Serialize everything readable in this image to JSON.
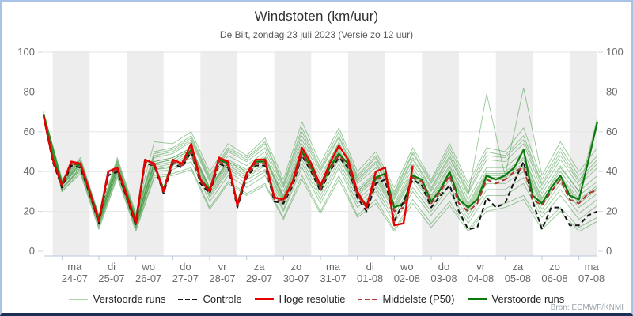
{
  "figure": {
    "title": "Windstoten (km/uur)",
    "subtitle": "De Bilt, zondag 23 juli 2023 (Versie zo 12 uur)",
    "source": "Bron: ECMWF/KNMI"
  },
  "legend": [
    {
      "label": "Verstoorde runs",
      "color": "#aed4a8",
      "dashed": false,
      "weight": 2
    },
    {
      "label": "Controle",
      "color": "#141414",
      "dashed": true,
      "weight": 2
    },
    {
      "label": "Hoge resolutie",
      "color": "#e60000",
      "dashed": false,
      "weight": 3
    },
    {
      "label": "Middelste (P50)",
      "color": "#b03535",
      "dashed": true,
      "weight": 2
    },
    {
      "label": "Verstoorde runs",
      "color": "#0b7a0b",
      "dashed": false,
      "weight": 3
    }
  ],
  "chart_data": {
    "type": "line",
    "title": "Windstoten (km/uur)",
    "x_unit": "hours since 2023-07-23 12:00",
    "x_range": [
      0,
      360
    ],
    "ylim": [
      0,
      100
    ],
    "y_ticks": [
      0,
      20,
      40,
      60,
      80,
      100
    ],
    "grid_values": [
      20,
      40,
      60,
      80,
      100
    ],
    "day_tick_hours": [
      12,
      36,
      60,
      84,
      108,
      132,
      156,
      180,
      204,
      228,
      252,
      276,
      300,
      324,
      348
    ],
    "x_day_labels": [
      {
        "weekday": "ma",
        "date": "24-07"
      },
      {
        "weekday": "di",
        "date": "25-07"
      },
      {
        "weekday": "wo",
        "date": "26-07"
      },
      {
        "weekday": "do",
        "date": "27-07"
      },
      {
        "weekday": "vr",
        "date": "28-07"
      },
      {
        "weekday": "za",
        "date": "29-07"
      },
      {
        "weekday": "zo",
        "date": "30-07"
      },
      {
        "weekday": "ma",
        "date": "31-07"
      },
      {
        "weekday": "di",
        "date": "01-08"
      },
      {
        "weekday": "wo",
        "date": "02-08"
      },
      {
        "weekday": "do",
        "date": "03-08"
      },
      {
        "weekday": "vr",
        "date": "04-08"
      },
      {
        "weekday": "za",
        "date": "05-08"
      },
      {
        "weekday": "zo",
        "date": "06-08"
      },
      {
        "weekday": "ma",
        "date": "07-08"
      }
    ],
    "shaded_band_start_hours": [
      6,
      54,
      102,
      150,
      198,
      246,
      294,
      342
    ],
    "band_width_hours": 24,
    "band_color": "#ededed",
    "grid_color": "#e6e6e6",
    "axis_color": "#b9c7da",
    "label_color": "#6a6a6a",
    "series": {
      "hoge_resolutie": {
        "label": "Hoge resolutie",
        "color": "#e60000",
        "width": 2.4,
        "x_step": 6,
        "values": [
          68,
          46,
          33,
          45,
          44,
          30,
          15,
          40,
          42,
          28,
          14,
          46,
          44,
          30,
          46,
          44,
          54,
          36,
          30,
          47,
          45,
          23,
          39,
          46,
          46,
          27,
          26,
          35,
          52,
          44,
          33,
          44,
          53,
          46,
          30,
          22,
          40,
          42,
          13,
          14,
          43
        ]
      },
      "controle": {
        "label": "Controle",
        "color": "#141414",
        "width": 2,
        "dash": "6,4",
        "x_step": 6,
        "values": [
          68,
          45,
          32,
          43,
          42,
          29,
          14,
          38,
          40,
          27,
          13,
          44,
          43,
          29,
          44,
          42,
          50,
          34,
          29,
          44,
          42,
          22,
          37,
          43,
          43,
          25,
          24,
          33,
          48,
          40,
          30,
          40,
          47,
          42,
          27,
          20,
          34,
          36,
          15,
          25,
          36,
          33,
          22,
          28,
          33,
          20,
          11,
          12,
          27,
          22,
          24,
          35,
          45,
          25,
          11,
          22,
          22,
          13,
          13,
          18,
          20
        ]
      },
      "middelste_p50": {
        "label": "Middelste (P50)",
        "color": "#b03535",
        "width": 2,
        "dash": "7,4",
        "x_step": 6,
        "values": [
          68,
          46,
          33,
          44,
          43,
          30,
          15,
          39,
          41,
          28,
          14,
          45,
          43,
          30,
          45,
          43,
          50,
          35,
          30,
          45,
          43,
          23,
          38,
          44,
          44,
          26,
          25,
          34,
          49,
          41,
          31,
          41,
          48,
          43,
          28,
          22,
          36,
          38,
          20,
          22,
          37,
          35,
          24,
          30,
          38,
          24,
          20,
          24,
          36,
          34,
          36,
          40,
          42,
          26,
          23,
          30,
          36,
          26,
          24,
          29,
          31
        ]
      },
      "verstoorde_thick": {
        "label": "Verstoorde runs",
        "color": "#0b7a0b",
        "width": 2.2,
        "x_step": 6,
        "values": [
          69,
          47,
          34,
          44,
          43,
          30,
          16,
          40,
          42,
          29,
          15,
          46,
          44,
          31,
          46,
          44,
          51,
          36,
          31,
          46,
          44,
          24,
          39,
          45,
          45,
          27,
          26,
          35,
          50,
          42,
          32,
          42,
          49,
          44,
          29,
          23,
          37,
          39,
          22,
          24,
          38,
          36,
          25,
          31,
          40,
          26,
          22,
          26,
          38,
          36,
          38,
          42,
          51,
          28,
          24,
          32,
          38,
          28,
          26,
          45,
          65
        ]
      },
      "members": {
        "label": "Verstoorde runs",
        "color": "#2e8f2e",
        "opacity": 0.5,
        "width": 0.9,
        "x_step": 12,
        "runs": [
          [
            70,
            34,
            44,
            16,
            42,
            15,
            45,
            47,
            52,
            32,
            45,
            40,
            47,
            27,
            52,
            34,
            50,
            30,
            38,
            22,
            39,
            26,
            40,
            22,
            38,
            38,
            44,
            25,
            38,
            26,
            33
          ],
          [
            69,
            32,
            42,
            14,
            40,
            13,
            41,
            43,
            48,
            28,
            41,
            36,
            41,
            23,
            46,
            28,
            46,
            26,
            34,
            18,
            35,
            22,
            36,
            18,
            34,
            34,
            40,
            21,
            34,
            22,
            29
          ],
          [
            70,
            35,
            45,
            17,
            44,
            16,
            47,
            49,
            55,
            35,
            48,
            43,
            50,
            30,
            56,
            38,
            54,
            34,
            42,
            26,
            44,
            30,
            45,
            26,
            42,
            42,
            50,
            29,
            43,
            30,
            38
          ],
          [
            68,
            31,
            41,
            13,
            39,
            12,
            40,
            41,
            45,
            25,
            38,
            32,
            38,
            20,
            42,
            24,
            42,
            22,
            30,
            14,
            30,
            18,
            30,
            14,
            28,
            28,
            34,
            17,
            28,
            16,
            23
          ],
          [
            70,
            36,
            46,
            18,
            46,
            18,
            50,
            52,
            58,
            38,
            52,
            47,
            55,
            34,
            62,
            42,
            60,
            38,
            48,
            30,
            50,
            35,
            52,
            32,
            50,
            48,
            58,
            34,
            50,
            36,
            46
          ],
          [
            68,
            30,
            40,
            12,
            38,
            11,
            38,
            39,
            42,
            22,
            35,
            29,
            34,
            17,
            38,
            20,
            38,
            18,
            26,
            11,
            26,
            14,
            25,
            11,
            22,
            24,
            28,
            13,
            22,
            12,
            17
          ],
          [
            69,
            33,
            43,
            15,
            43,
            14,
            44,
            46,
            51,
            31,
            44,
            39,
            46,
            26,
            50,
            32,
            52,
            31,
            40,
            24,
            42,
            28,
            43,
            24,
            40,
            40,
            47,
            27,
            40,
            28,
            35
          ],
          [
            70,
            34,
            45,
            16,
            45,
            17,
            48,
            50,
            56,
            36,
            50,
            45,
            52,
            32,
            58,
            40,
            57,
            36,
            45,
            28,
            47,
            32,
            48,
            29,
            46,
            45,
            54,
            31,
            46,
            33,
            42
          ],
          [
            68,
            32,
            41,
            14,
            41,
            13,
            42,
            44,
            49,
            29,
            42,
            37,
            43,
            24,
            48,
            30,
            48,
            28,
            36,
            20,
            37,
            24,
            38,
            20,
            36,
            36,
            42,
            23,
            36,
            24,
            31
          ],
          [
            69,
            31,
            42,
            13,
            40,
            12,
            41,
            42,
            47,
            27,
            40,
            34,
            40,
            21,
            44,
            26,
            44,
            24,
            32,
            16,
            32,
            20,
            33,
            16,
            31,
            31,
            37,
            19,
            31,
            19,
            26
          ],
          [
            70,
            35,
            46,
            17,
            45,
            17,
            49,
            51,
            57,
            37,
            51,
            46,
            54,
            33,
            60,
            41,
            58,
            37,
            47,
            29,
            49,
            34,
            50,
            30,
            48,
            47,
            56,
            33,
            48,
            35,
            44
          ],
          [
            68,
            33,
            44,
            15,
            42,
            14,
            43,
            45,
            50,
            30,
            43,
            38,
            44,
            25,
            49,
            31,
            49,
            29,
            37,
            21,
            38,
            25,
            39,
            21,
            37,
            37,
            43,
            24,
            37,
            25,
            32
          ],
          [
            69,
            34,
            44,
            16,
            43,
            15,
            45,
            47,
            52,
            32,
            46,
            41,
            48,
            28,
            54,
            36,
            55,
            35,
            44,
            27,
            46,
            31,
            47,
            28,
            79,
            38,
            82,
            38,
            55,
            40,
            52
          ],
          [
            70,
            36,
            47,
            18,
            47,
            19,
            55,
            54,
            60,
            40,
            54,
            48,
            57,
            36,
            65,
            44,
            62,
            40,
            50,
            32,
            52,
            36,
            54,
            34,
            52,
            50,
            62,
            36,
            52,
            38,
            48
          ],
          [
            68,
            30,
            39,
            11,
            37,
            10,
            37,
            38,
            41,
            21,
            34,
            28,
            33,
            16,
            36,
            19,
            36,
            17,
            24,
            10,
            24,
            12,
            23,
            10,
            20,
            22,
            26,
            11,
            20,
            10,
            15
          ],
          [
            69,
            33,
            43,
            15,
            42,
            14,
            44,
            46,
            51,
            31,
            45,
            40,
            47,
            27,
            51,
            33,
            51,
            30,
            39,
            23,
            40,
            27,
            42,
            23,
            39,
            39,
            46,
            26,
            42,
            30,
            67
          ]
        ]
      }
    }
  }
}
